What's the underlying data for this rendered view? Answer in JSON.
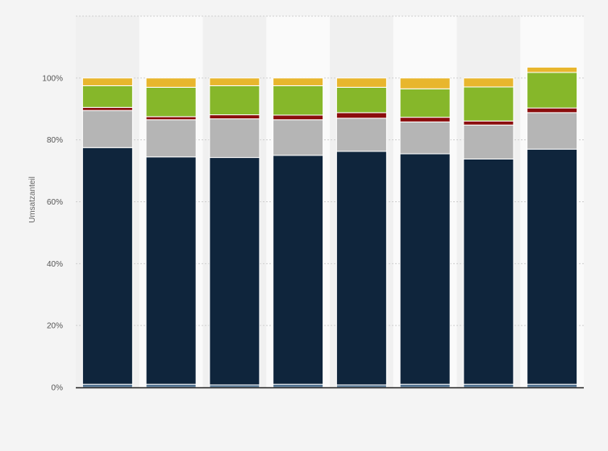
{
  "chart_data": {
    "type": "bar",
    "stacked": true,
    "categories": [
      "",
      "",
      "",
      "",
      "",
      "",
      "",
      ""
    ],
    "ylabel": "Umsatzanteil",
    "ylim": [
      0,
      120
    ],
    "yticks": [
      0,
      20,
      40,
      60,
      80,
      100
    ],
    "ytick_labels": [
      "0%",
      "20%",
      "40%",
      "60%",
      "80%",
      "100%"
    ],
    "grid": true,
    "legend": "none",
    "series": [
      {
        "color": "#4a6d8c",
        "values": [
          1,
          1,
          0.8,
          1,
          0.8,
          1,
          1,
          1
        ]
      },
      {
        "color": "#0f253c",
        "values": [
          76.5,
          73.5,
          73.5,
          74,
          75.5,
          74.5,
          72.8,
          76
        ]
      },
      {
        "color": "#b5b5b5",
        "values": [
          12,
          12,
          12.5,
          11.5,
          10.7,
          10.3,
          11,
          11.8
        ]
      },
      {
        "color": "#8b0d0d",
        "values": [
          1,
          1,
          1.3,
          1.5,
          1.8,
          1.5,
          1.3,
          1.5
        ]
      },
      {
        "color": "#86b72a",
        "values": [
          7,
          9.5,
          9.4,
          9.5,
          8.2,
          9.2,
          11,
          11.5
        ]
      },
      {
        "color": "#e8b62d",
        "values": [
          2.5,
          3,
          2.5,
          2.5,
          3,
          3.5,
          2.9,
          1.7
        ]
      }
    ]
  }
}
